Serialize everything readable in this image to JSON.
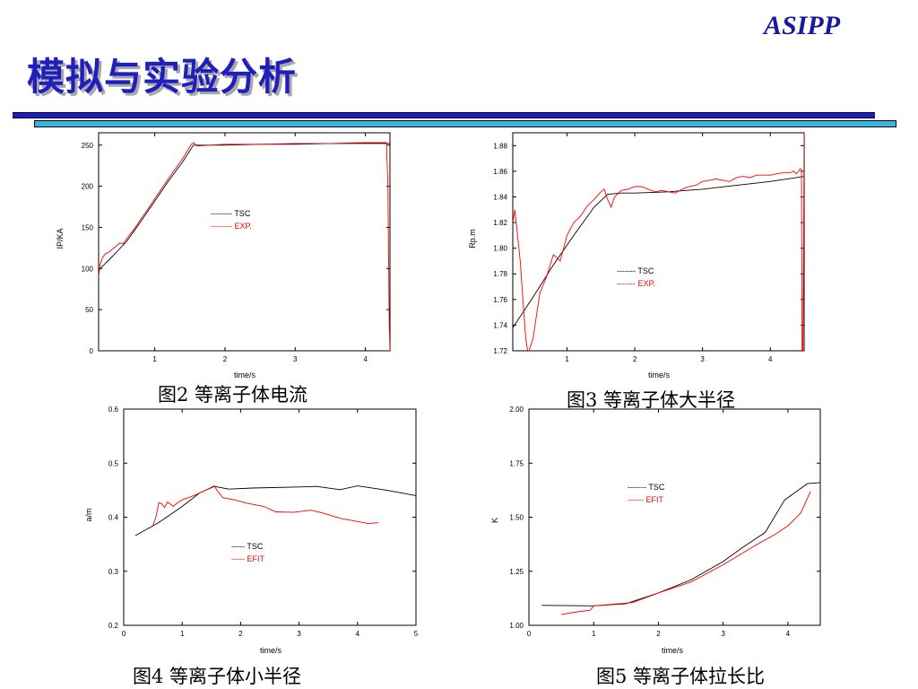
{
  "header": {
    "brand": "ASIPP",
    "title": "模拟与实验分析"
  },
  "captions": {
    "fig2": "图2 等离子体电流",
    "fig3": "图3 等离子体大半径",
    "fig4": "图4 等离子体小半径",
    "fig5": "图5 等离子体拉长比"
  },
  "colors": {
    "brand": "#1a1aa0",
    "title": "#1f1fbe",
    "rule_dark": "#1c1cc4",
    "rule_light": "#33b5e5",
    "tsc": "#000000",
    "exp": "#ff0000"
  },
  "chart_data": [
    {
      "id": "ip",
      "type": "line",
      "xlabel": "time/s",
      "ylabel": "IP/KA",
      "xlim": [
        0.2,
        4.35
      ],
      "ylim": [
        0,
        265
      ],
      "xticks": [
        1,
        2,
        3,
        4
      ],
      "yticks": [
        0,
        50,
        100,
        150,
        200,
        250
      ],
      "legend": [
        "--------   TSC",
        "--------   EXP."
      ],
      "series": [
        {
          "name": "TSC",
          "color": "#000000",
          "x": [
            0.2,
            0.4,
            0.6,
            0.8,
            1.0,
            1.2,
            1.4,
            1.55,
            1.7,
            2.0,
            2.5,
            3.0,
            3.5,
            4.0,
            4.35
          ],
          "y": [
            98,
            115,
            133,
            157,
            182,
            207,
            230,
            250,
            250,
            250,
            251,
            251,
            252,
            252,
            252
          ]
        },
        {
          "name": "EXP.",
          "color": "#ff0000",
          "x": [
            0.2,
            0.22,
            0.26,
            0.3,
            0.35,
            0.4,
            0.45,
            0.5,
            0.55,
            0.6,
            0.65,
            0.7,
            0.8,
            0.9,
            1.0,
            1.2,
            1.4,
            1.52,
            1.56,
            1.6,
            1.8,
            2.0,
            2.5,
            3.0,
            3.5,
            4.0,
            4.3,
            4.32,
            4.34,
            4.35
          ],
          "y": [
            90,
            105,
            114,
            118,
            120,
            124,
            127,
            131,
            130,
            136,
            142,
            147,
            160,
            172,
            185,
            210,
            234,
            251,
            253,
            249,
            250,
            251,
            251,
            252,
            252,
            253,
            253,
            200,
            30,
            0
          ]
        }
      ]
    },
    {
      "id": "rp",
      "type": "line",
      "xlabel": "time/s",
      "ylabel": "Rp.m",
      "xlim": [
        0.2,
        4.5
      ],
      "ylim": [
        1.72,
        1.89
      ],
      "xticks": [
        1,
        2,
        3,
        4
      ],
      "yticks": [
        1.72,
        1.74,
        1.76,
        1.78,
        1.8,
        1.82,
        1.84,
        1.86,
        1.88
      ],
      "legend": [
        "-------   TSC",
        "-------   EXP."
      ],
      "series": [
        {
          "name": "TSC",
          "color": "#000000",
          "x": [
            0.2,
            0.5,
            0.8,
            1.1,
            1.4,
            1.6,
            1.8,
            2.0,
            2.5,
            3.0,
            3.5,
            4.0,
            4.5
          ],
          "y": [
            1.738,
            1.762,
            1.787,
            1.81,
            1.832,
            1.842,
            1.843,
            1.843,
            1.844,
            1.846,
            1.849,
            1.852,
            1.856
          ]
        },
        {
          "name": "EXP.",
          "color": "#ff0000",
          "x": [
            0.2,
            0.23,
            0.27,
            0.31,
            0.35,
            0.39,
            0.42,
            0.44,
            0.5,
            0.6,
            0.7,
            0.8,
            0.9,
            1.0,
            1.1,
            1.2,
            1.3,
            1.4,
            1.5,
            1.55,
            1.6,
            1.65,
            1.7,
            1.8,
            1.9,
            2.0,
            2.1,
            2.2,
            2.3,
            2.4,
            2.5,
            2.6,
            2.7,
            2.8,
            2.9,
            3.0,
            3.1,
            3.2,
            3.3,
            3.4,
            3.5,
            3.6,
            3.7,
            3.8,
            3.9,
            4.0,
            4.1,
            4.2,
            4.3,
            4.35,
            4.38,
            4.42,
            4.44,
            4.46,
            4.47,
            4.48,
            4.49,
            4.5
          ],
          "y": [
            1.82,
            1.83,
            1.81,
            1.79,
            1.76,
            1.73,
            1.72,
            1.72,
            1.73,
            1.765,
            1.778,
            1.795,
            1.79,
            1.81,
            1.82,
            1.825,
            1.833,
            1.838,
            1.844,
            1.846,
            1.838,
            1.832,
            1.84,
            1.845,
            1.846,
            1.848,
            1.848,
            1.846,
            1.844,
            1.845,
            1.844,
            1.843,
            1.846,
            1.848,
            1.849,
            1.852,
            1.853,
            1.854,
            1.853,
            1.852,
            1.855,
            1.856,
            1.855,
            1.857,
            1.857,
            1.857,
            1.858,
            1.859,
            1.859,
            1.86,
            1.858,
            1.86,
            1.862,
            1.861,
            1.72,
            1.72,
            1.775,
            1.89
          ]
        }
      ]
    },
    {
      "id": "a",
      "type": "line",
      "xlabel": "time/s",
      "ylabel": "a/m",
      "xlim": [
        0,
        5
      ],
      "ylim": [
        0.2,
        0.6
      ],
      "xticks": [
        0,
        1,
        2,
        3,
        4,
        5
      ],
      "yticks": [
        0.2,
        0.3,
        0.4,
        0.5,
        0.6
      ],
      "legend": [
        "-----   TSC",
        "-----    EFIT"
      ],
      "series": [
        {
          "name": "TSC",
          "color": "#000000",
          "x": [
            0.2,
            0.6,
            1.0,
            1.3,
            1.55,
            1.8,
            2.2,
            3.0,
            3.3,
            3.7,
            4.0,
            4.5,
            5.0
          ],
          "y": [
            0.366,
            0.39,
            0.42,
            0.445,
            0.457,
            0.452,
            0.454,
            0.456,
            0.457,
            0.451,
            0.458,
            0.45,
            0.44
          ]
        },
        {
          "name": "EFIT",
          "color": "#ff0000",
          "x": [
            0.5,
            0.55,
            0.6,
            0.65,
            0.7,
            0.75,
            0.8,
            0.85,
            0.9,
            1.0,
            1.2,
            1.4,
            1.55,
            1.6,
            1.7,
            1.9,
            2.1,
            2.4,
            2.6,
            2.9,
            3.2,
            3.4,
            3.7,
            4.0,
            4.2,
            4.35
          ],
          "y": [
            0.385,
            0.4,
            0.427,
            0.425,
            0.418,
            0.428,
            0.424,
            0.42,
            0.425,
            0.432,
            0.44,
            0.45,
            0.458,
            0.449,
            0.436,
            0.432,
            0.426,
            0.42,
            0.41,
            0.409,
            0.413,
            0.408,
            0.398,
            0.392,
            0.388,
            0.39
          ]
        }
      ]
    },
    {
      "id": "kappa",
      "type": "line",
      "xlabel": "time/s",
      "ylabel": "K",
      "xlim": [
        0,
        4.5
      ],
      "ylim": [
        1.0,
        2.0
      ],
      "xticks": [
        0,
        1,
        2,
        3,
        4
      ],
      "yticks": [
        1.0,
        1.25,
        1.5,
        1.75,
        2.0
      ],
      "legend": [
        "-------   TSC",
        "------    EFIT"
      ],
      "series": [
        {
          "name": "TSC",
          "color": "#000000",
          "x": [
            0.2,
            1.0,
            1.5,
            2.0,
            2.5,
            3.0,
            3.3,
            3.65,
            3.95,
            4.3,
            4.5
          ],
          "y": [
            1.092,
            1.09,
            1.1,
            1.15,
            1.21,
            1.295,
            1.36,
            1.43,
            1.58,
            1.655,
            1.66
          ]
        },
        {
          "name": "EFIT",
          "color": "#ff0000",
          "x": [
            0.5,
            0.7,
            0.95,
            1.0,
            1.2,
            1.6,
            2.0,
            2.5,
            3.0,
            3.5,
            3.8,
            4.0,
            4.2,
            4.35
          ],
          "y": [
            1.05,
            1.06,
            1.07,
            1.09,
            1.095,
            1.105,
            1.15,
            1.2,
            1.28,
            1.37,
            1.42,
            1.46,
            1.52,
            1.62
          ]
        }
      ]
    }
  ]
}
